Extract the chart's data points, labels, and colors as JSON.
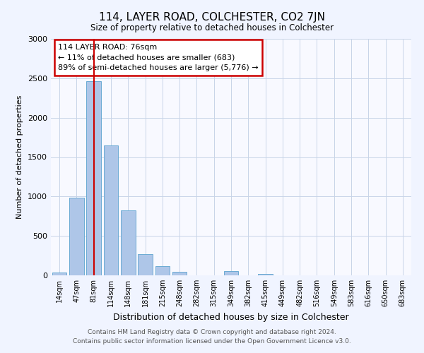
{
  "title": "114, LAYER ROAD, COLCHESTER, CO2 7JN",
  "subtitle": "Size of property relative to detached houses in Colchester",
  "xlabel": "Distribution of detached houses by size in Colchester",
  "ylabel": "Number of detached properties",
  "bar_labels": [
    "14sqm",
    "47sqm",
    "81sqm",
    "114sqm",
    "148sqm",
    "181sqm",
    "215sqm",
    "248sqm",
    "282sqm",
    "315sqm",
    "349sqm",
    "382sqm",
    "415sqm",
    "449sqm",
    "482sqm",
    "516sqm",
    "549sqm",
    "583sqm",
    "616sqm",
    "650sqm",
    "683sqm"
  ],
  "bar_values": [
    40,
    985,
    2460,
    1650,
    820,
    270,
    115,
    45,
    0,
    0,
    50,
    0,
    20,
    0,
    0,
    0,
    0,
    0,
    0,
    0,
    0
  ],
  "bar_color": "#aec6e8",
  "bar_edge_color": "#6aaad4",
  "vline_x": 2,
  "vline_color": "#cc0000",
  "ylim": [
    0,
    3000
  ],
  "annotation_text": "114 LAYER ROAD: 76sqm\n← 11% of detached houses are smaller (683)\n89% of semi-detached houses are larger (5,776) →",
  "annotation_box_color": "#ffffff",
  "annotation_box_edge_color": "#cc0000",
  "footer_text": "Contains HM Land Registry data © Crown copyright and database right 2024.\nContains public sector information licensed under the Open Government Licence v3.0.",
  "bg_color": "#f0f4ff",
  "plot_bg_color": "#f8f9ff"
}
